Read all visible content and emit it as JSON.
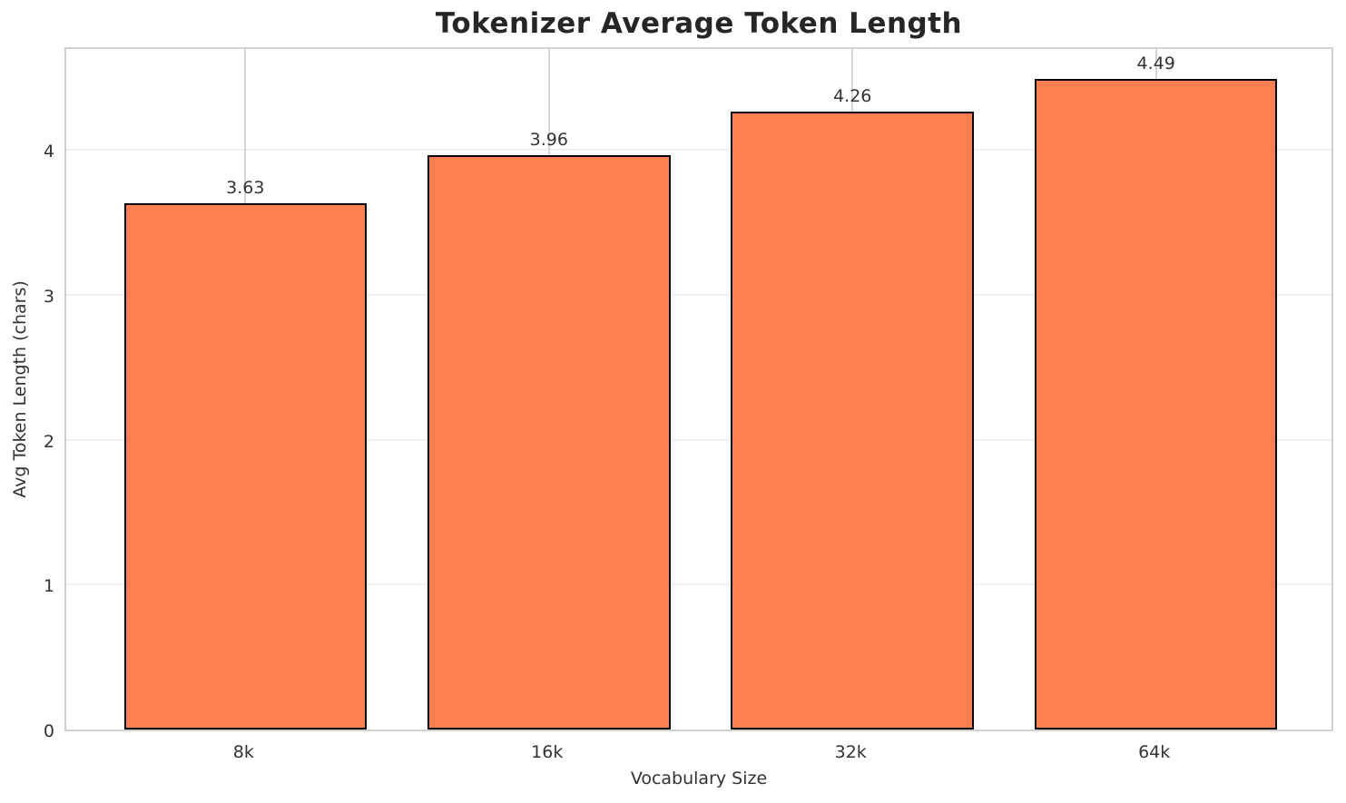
{
  "chart_data": {
    "type": "bar",
    "title": "Tokenizer Average Token Length",
    "xlabel": "Vocabulary Size",
    "ylabel": "Avg Token Length (chars)",
    "categories": [
      "8k",
      "16k",
      "32k",
      "64k"
    ],
    "values": [
      3.63,
      3.96,
      4.26,
      4.49
    ],
    "value_labels": [
      "3.63",
      "3.96",
      "4.26",
      "4.49"
    ],
    "yticks": [
      "0",
      "1",
      "2",
      "3",
      "4"
    ],
    "ytick_values": [
      0,
      1,
      2,
      3,
      4
    ],
    "ylim": [
      0,
      4.72
    ],
    "bar_width_fraction": 0.8,
    "x_margin_units": 0.59,
    "grid": "on",
    "legend": "none",
    "colors": {
      "bar_fill": "#FF7F50",
      "bar_edge": "#000000",
      "background": "#FFFFFF",
      "grid_horizontal": "#F0F0F0",
      "grid_vertical": "#D6D6D6",
      "spine": "#D0D0D0",
      "title_text": "#262626",
      "tick_text": "#333333"
    }
  }
}
